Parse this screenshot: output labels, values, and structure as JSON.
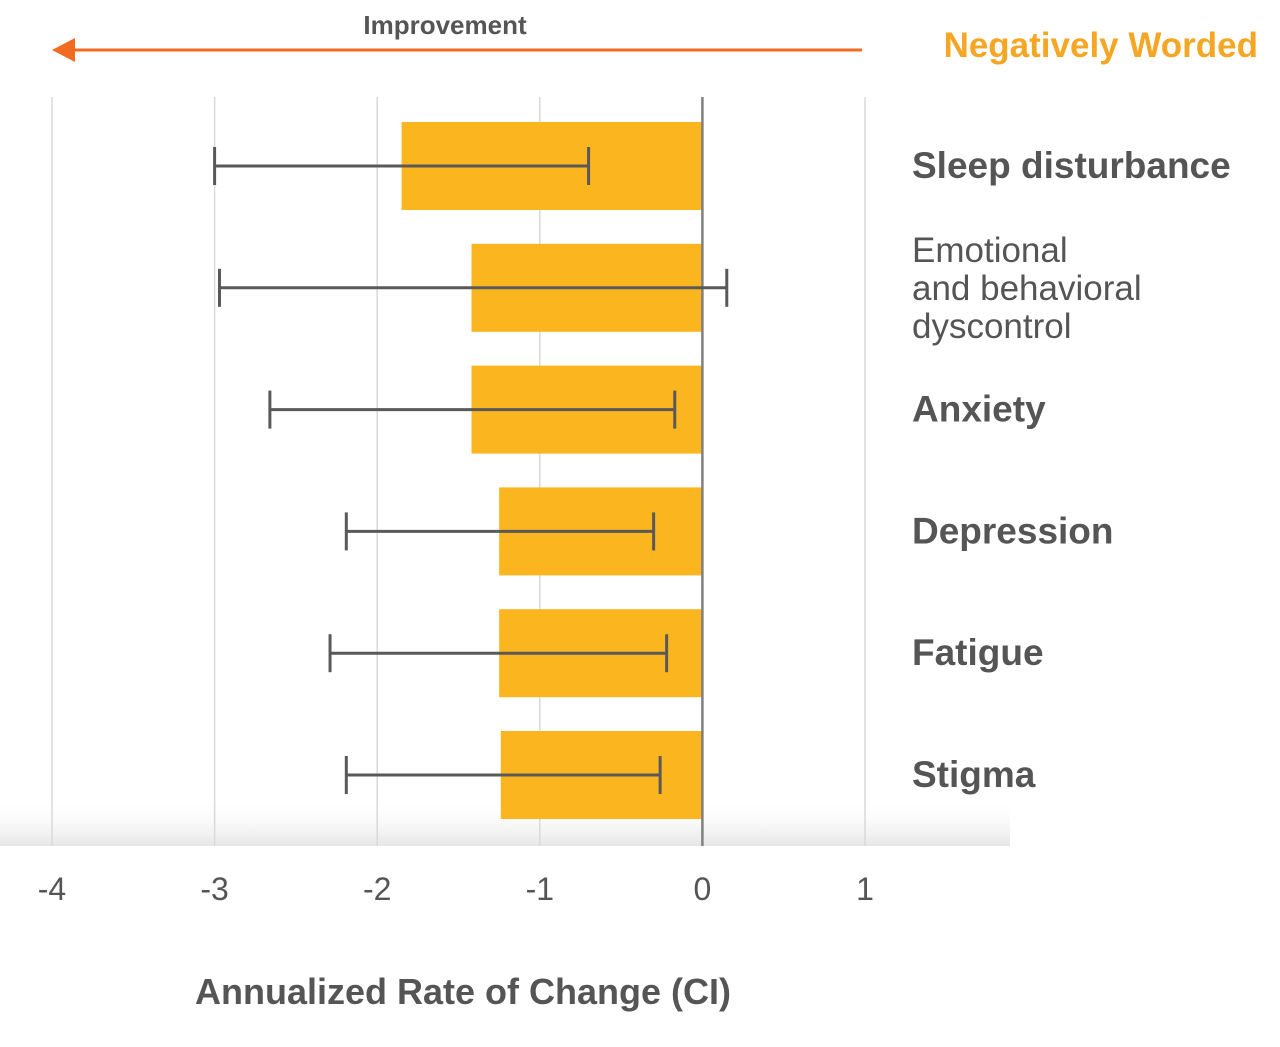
{
  "arrow": {
    "label": "Improvement",
    "color": "#F26B21"
  },
  "panel_title": "Negatively Worded",
  "colors": {
    "title": "#F5A623",
    "bar": "#FBB61F",
    "errorbar": "#595959",
    "text": "#555555",
    "grid": "#D9D9D9",
    "zero_line": "#808080"
  },
  "chart_data": {
    "type": "bar",
    "orientation": "horizontal",
    "categories": [
      "Sleep disturbance",
      "Emotional and behavioral dyscontrol",
      "Anxiety",
      "Depression",
      "Fatigue",
      "Stigma"
    ],
    "category_label_lines": [
      [
        "Sleep disturbance"
      ],
      [
        "Emotional",
        "and behavioral",
        "dyscontrol"
      ],
      [
        "Anxiety"
      ],
      [
        "Depression"
      ],
      [
        "Fatigue"
      ],
      [
        "Stigma"
      ]
    ],
    "category_bold": [
      true,
      false,
      true,
      true,
      true,
      true
    ],
    "values": [
      -1.85,
      -1.42,
      -1.42,
      -1.25,
      -1.25,
      -1.24
    ],
    "ci_low": [
      -3.0,
      -2.97,
      -2.66,
      -2.19,
      -2.29,
      -2.19
    ],
    "ci_high": [
      -0.7,
      0.15,
      -0.17,
      -0.3,
      -0.22,
      -0.26
    ],
    "xlim": [
      -4,
      1
    ],
    "xticks": [
      -4,
      -3,
      -2,
      -1,
      0,
      1
    ],
    "xtick_labels": [
      "-4",
      "-3",
      "-2",
      "-1",
      "0",
      "1"
    ],
    "xlabel": "Annualized Rate of Change (CI)",
    "ylabel": "",
    "grid": true
  }
}
